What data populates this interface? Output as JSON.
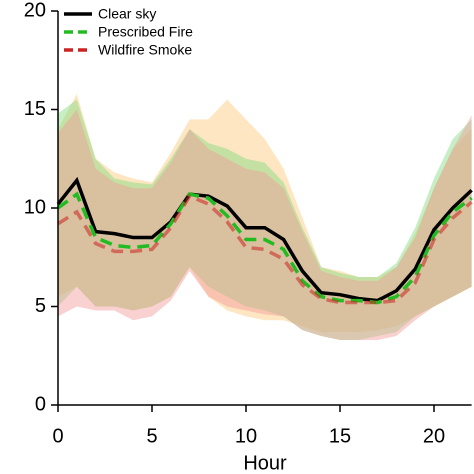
{
  "chart_data": {
    "type": "line",
    "x_label": "Hour",
    "x": [
      0,
      1,
      2,
      3,
      4,
      5,
      6,
      7,
      8,
      9,
      10,
      11,
      12,
      13,
      14,
      15,
      16,
      17,
      18,
      19,
      20,
      21,
      22
    ],
    "xlim": [
      0,
      22
    ],
    "xticks": [
      0,
      5,
      10,
      15,
      20
    ],
    "ylim": [
      0,
      20
    ],
    "yticks": [
      0,
      5,
      10,
      15,
      20
    ],
    "legend": "upper left",
    "series": [
      {
        "name": "Clear sky",
        "color": "#000000",
        "dash": "solid",
        "band_color": "#fcc878",
        "values": [
          10.2,
          11.4,
          8.8,
          8.7,
          8.5,
          8.5,
          9.3,
          10.7,
          10.6,
          10.1,
          9.0,
          9.0,
          8.4,
          6.8,
          5.7,
          5.6,
          5.4,
          5.3,
          5.8,
          6.9,
          8.9,
          10.0,
          10.9
        ],
        "upper": [
          14.0,
          15.8,
          12.5,
          11.8,
          11.5,
          11.3,
          12.8,
          14.5,
          14.5,
          15.5,
          14.5,
          13.5,
          12.0,
          9.5,
          7.0,
          6.8,
          6.5,
          6.5,
          7.0,
          8.7,
          11.0,
          13.0,
          14.0
        ],
        "lower": [
          5.5,
          6.0,
          5.0,
          5.0,
          4.8,
          5.0,
          5.5,
          7.0,
          5.5,
          4.8,
          4.5,
          4.3,
          4.3,
          4.0,
          3.7,
          3.7,
          3.7,
          3.8,
          4.0,
          4.5,
          5.0,
          5.5,
          6.0
        ]
      },
      {
        "name": "Prescribed Fire",
        "color": "#22bb22",
        "dash": "dashed",
        "band_color": "#7fdc7f",
        "values": [
          10.0,
          10.7,
          8.5,
          8.1,
          8.0,
          8.1,
          9.2,
          10.7,
          10.5,
          9.6,
          8.4,
          8.4,
          7.9,
          6.3,
          5.5,
          5.3,
          5.3,
          5.2,
          5.5,
          6.5,
          8.6,
          9.8,
          10.5
        ],
        "upper": [
          14.8,
          15.5,
          12.5,
          11.5,
          11.3,
          11.2,
          12.5,
          14.0,
          13.3,
          13.0,
          12.5,
          12.3,
          11.3,
          9.0,
          7.0,
          6.7,
          6.5,
          6.5,
          7.2,
          9.0,
          11.5,
          13.5,
          14.5
        ],
        "lower": [
          5.0,
          6.0,
          5.0,
          5.0,
          4.8,
          5.0,
          5.5,
          7.0,
          6.0,
          5.5,
          5.0,
          4.8,
          4.5,
          3.8,
          3.5,
          3.3,
          3.3,
          3.5,
          3.7,
          4.5,
          5.0,
          5.5,
          6.0
        ]
      },
      {
        "name": "Wildfire Smoke",
        "color": "#cc2222",
        "dash": "dashed",
        "band_color": "#f59a9a",
        "values": [
          9.2,
          9.8,
          8.2,
          7.8,
          7.8,
          7.9,
          9.0,
          10.6,
          10.2,
          9.3,
          8.0,
          7.9,
          7.4,
          6.1,
          5.4,
          5.2,
          5.2,
          5.2,
          5.3,
          6.2,
          8.4,
          9.5,
          10.3
        ],
        "upper": [
          13.8,
          15.0,
          12.0,
          11.3,
          11.0,
          11.0,
          12.3,
          14.0,
          13.0,
          12.5,
          12.0,
          11.8,
          11.0,
          8.8,
          6.8,
          6.5,
          6.3,
          6.3,
          7.0,
          8.5,
          11.0,
          13.0,
          14.7
        ],
        "lower": [
          4.5,
          5.0,
          4.8,
          4.8,
          4.3,
          4.5,
          5.3,
          6.8,
          5.5,
          5.0,
          4.8,
          4.6,
          4.5,
          3.8,
          3.5,
          3.3,
          3.3,
          3.3,
          3.5,
          4.3,
          5.0,
          5.5,
          6.0
        ]
      }
    ]
  }
}
